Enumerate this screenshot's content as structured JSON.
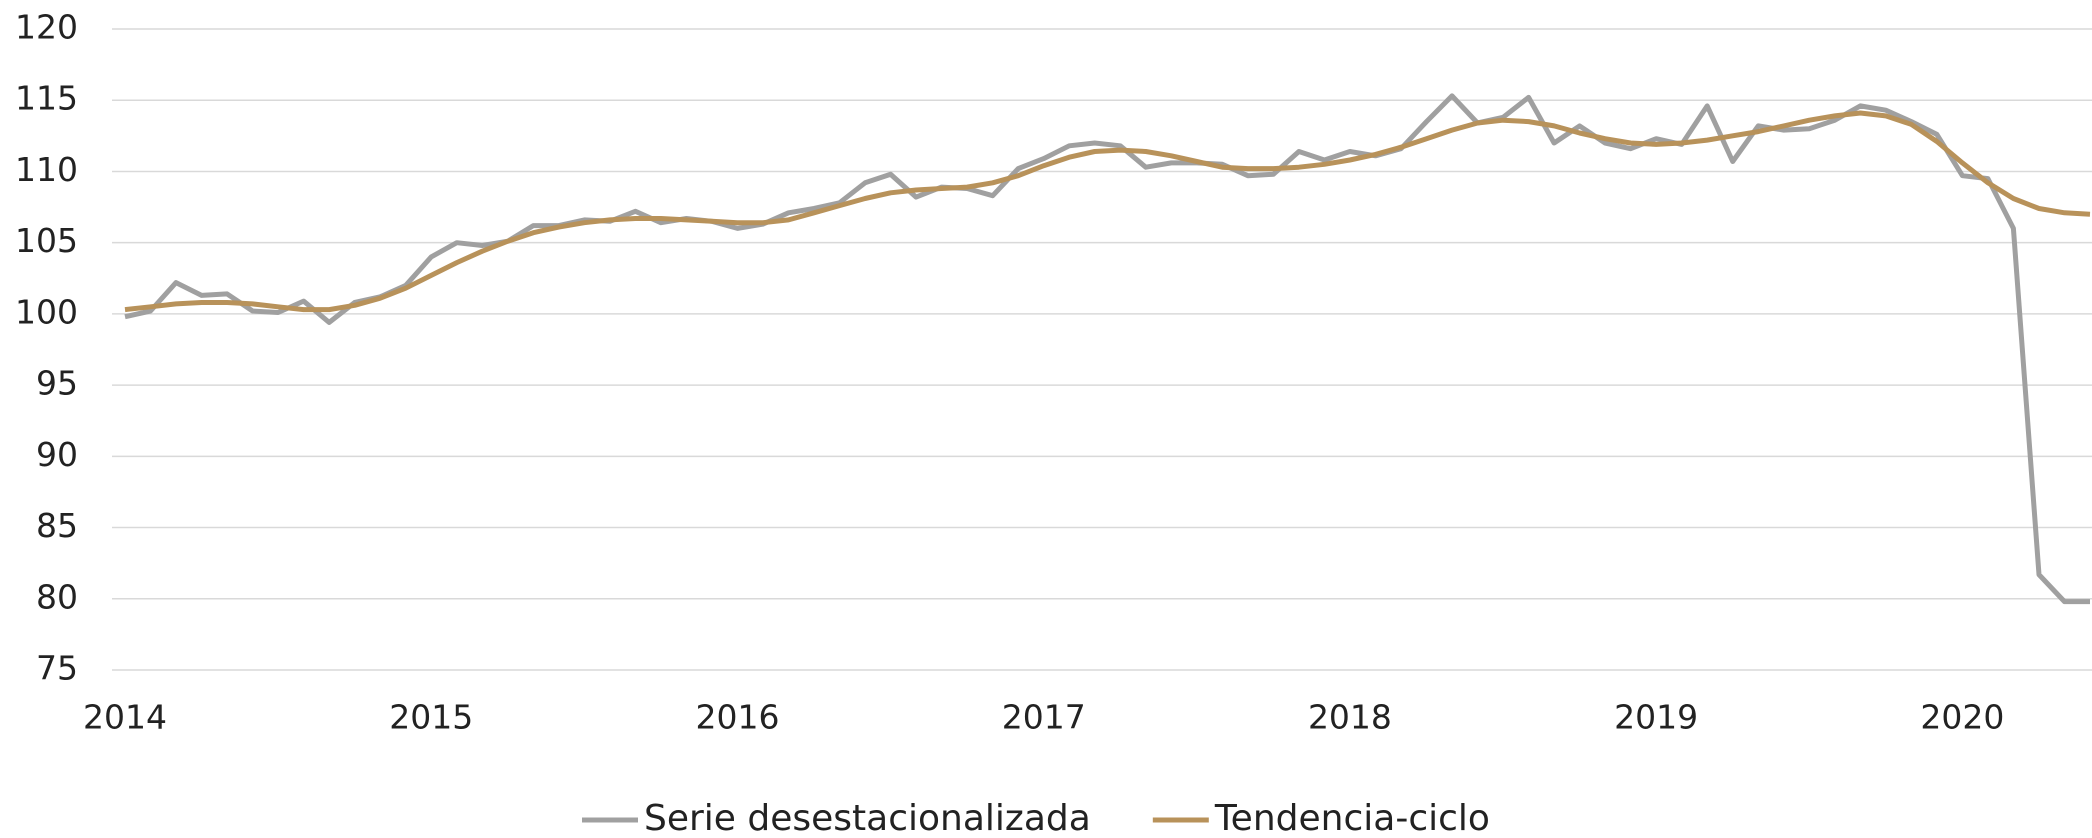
{
  "chart_data": {
    "type": "line",
    "categories": [
      "2014",
      null,
      null,
      null,
      null,
      null,
      null,
      null,
      null,
      null,
      null,
      null,
      "2015",
      null,
      null,
      null,
      null,
      null,
      null,
      null,
      null,
      null,
      null,
      null,
      "2016",
      null,
      null,
      null,
      null,
      null,
      null,
      null,
      null,
      null,
      null,
      null,
      "2017",
      null,
      null,
      null,
      null,
      null,
      null,
      null,
      null,
      null,
      null,
      null,
      "2018",
      null,
      null,
      null,
      null,
      null,
      null,
      null,
      null,
      null,
      null,
      null,
      "2019",
      null,
      null,
      null,
      null,
      null,
      null,
      null,
      null,
      null,
      null,
      null,
      "2020",
      null,
      null,
      null,
      null,
      null
    ],
    "series": [
      {
        "name": "Serie desestacionalizada",
        "color": "#a0a0a0",
        "values": [
          99.8,
          100.2,
          102.2,
          101.3,
          101.4,
          100.2,
          100.1,
          100.9,
          99.4,
          100.8,
          101.2,
          102.0,
          104.0,
          105.0,
          104.8,
          105.1,
          106.2,
          106.2,
          106.6,
          106.5,
          107.2,
          106.4,
          106.7,
          106.5,
          106.0,
          106.3,
          107.1,
          107.4,
          107.8,
          109.2,
          109.8,
          108.2,
          108.9,
          108.8,
          108.3,
          110.2,
          110.9,
          111.8,
          112.0,
          111.8,
          110.3,
          110.6,
          110.6,
          110.5,
          109.7,
          109.8,
          111.4,
          110.8,
          111.4,
          111.1,
          111.6,
          113.5,
          115.3,
          113.4,
          113.8,
          115.2,
          112.0,
          113.2,
          112.0,
          111.6,
          112.3,
          111.9,
          114.6,
          110.7,
          113.2,
          112.9,
          113.0,
          113.6,
          114.6,
          114.3,
          113.5,
          112.6,
          109.7,
          109.5,
          106.0,
          81.7,
          79.8,
          79.8
        ]
      },
      {
        "name": "Tendencia-ciclo",
        "color": "#b8925a",
        "values": [
          100.3,
          100.5,
          100.7,
          100.8,
          100.8,
          100.7,
          100.5,
          100.3,
          100.3,
          100.6,
          101.1,
          101.8,
          102.7,
          103.6,
          104.4,
          105.1,
          105.7,
          106.1,
          106.4,
          106.6,
          106.7,
          106.7,
          106.6,
          106.5,
          106.4,
          106.4,
          106.6,
          107.1,
          107.6,
          108.1,
          108.5,
          108.7,
          108.8,
          108.9,
          109.2,
          109.7,
          110.4,
          111.0,
          111.4,
          111.5,
          111.4,
          111.1,
          110.7,
          110.3,
          110.2,
          110.2,
          110.3,
          110.5,
          110.8,
          111.2,
          111.7,
          112.3,
          112.9,
          113.4,
          113.6,
          113.5,
          113.2,
          112.7,
          112.3,
          112.0,
          111.9,
          112.0,
          112.2,
          112.5,
          112.8,
          113.2,
          113.6,
          113.9,
          114.1,
          113.9,
          113.3,
          112.1,
          110.6,
          109.2,
          108.1,
          107.4,
          107.1,
          107.0
        ]
      }
    ],
    "ylim": [
      75,
      120
    ],
    "yticks": [
      75,
      80,
      85,
      90,
      95,
      100,
      105,
      110,
      115,
      120
    ],
    "grid": true,
    "legend": "bottom"
  }
}
